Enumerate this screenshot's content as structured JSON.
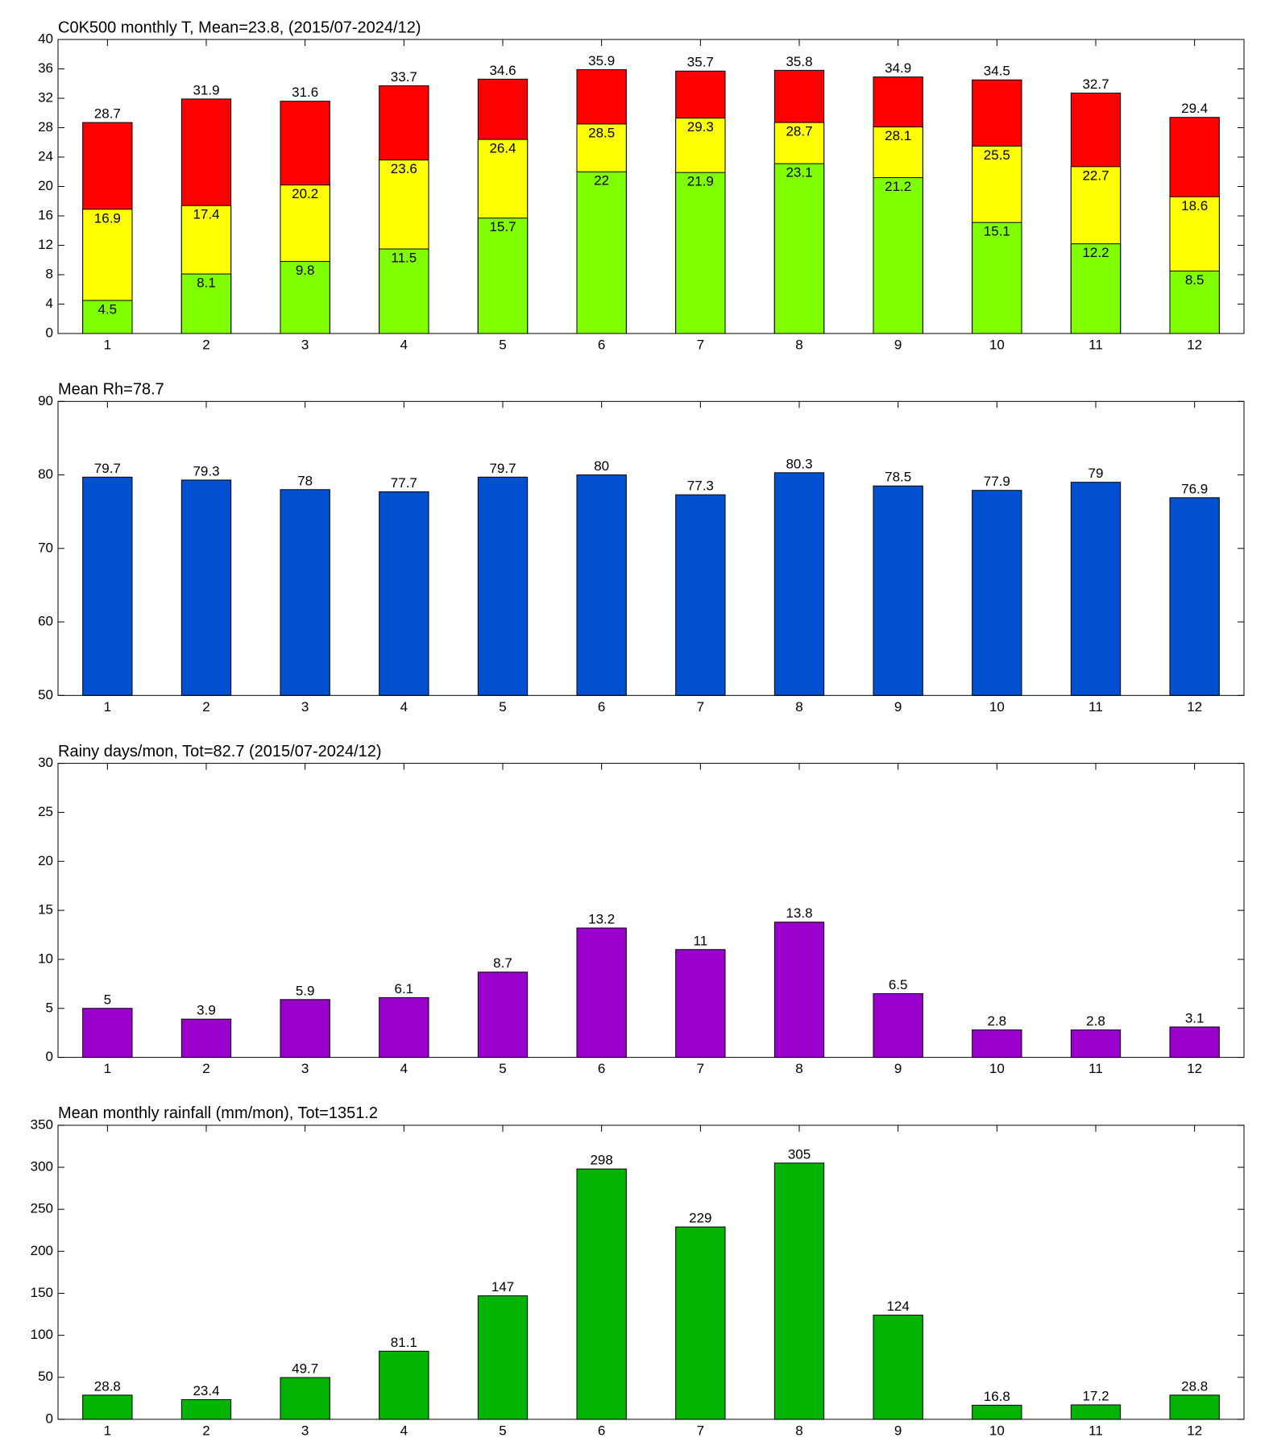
{
  "chart_data": [
    {
      "type": "bar",
      "title": "C0K500 monthly T, Mean=23.8, (2015/07-2024/12)",
      "categories": [
        "1",
        "2",
        "3",
        "4",
        "5",
        "6",
        "7",
        "8",
        "9",
        "10",
        "11",
        "12"
      ],
      "series": [
        {
          "color": "#ff0000",
          "values": [
            28.7,
            31.9,
            31.6,
            33.7,
            34.6,
            35.9,
            35.7,
            35.8,
            34.9,
            34.5,
            32.7,
            29.4
          ]
        },
        {
          "color": "#ffff00",
          "values": [
            16.9,
            17.4,
            20.2,
            23.6,
            26.4,
            28.5,
            29.3,
            28.7,
            28.1,
            25.5,
            22.7,
            18.6
          ]
        },
        {
          "color": "#80ff00",
          "values": [
            4.5,
            8.1,
            9.8,
            11.5,
            15.7,
            22,
            21.9,
            23.1,
            21.2,
            15.1,
            12.2,
            8.5
          ]
        }
      ],
      "ylim": [
        0,
        40
      ],
      "yticks": [
        0,
        4,
        8,
        12,
        16,
        20,
        24,
        28,
        32,
        36,
        40
      ]
    },
    {
      "type": "bar",
      "title": "Mean Rh=78.7",
      "categories": [
        "1",
        "2",
        "3",
        "4",
        "5",
        "6",
        "7",
        "8",
        "9",
        "10",
        "11",
        "12"
      ],
      "values": [
        79.7,
        79.3,
        78,
        77.7,
        79.7,
        80,
        77.3,
        80.3,
        78.5,
        77.9,
        79,
        76.9
      ],
      "color": "#0050d0",
      "ylim": [
        50,
        90
      ],
      "yticks": [
        50,
        60,
        70,
        80,
        90
      ]
    },
    {
      "type": "bar",
      "title": "Rainy days/mon, Tot=82.7 (2015/07-2024/12)",
      "categories": [
        "1",
        "2",
        "3",
        "4",
        "5",
        "6",
        "7",
        "8",
        "9",
        "10",
        "11",
        "12"
      ],
      "values": [
        5,
        3.9,
        5.9,
        6.1,
        8.7,
        13.2,
        11,
        13.8,
        6.5,
        2.8,
        2.8,
        3.1
      ],
      "color": "#9900cc",
      "ylim": [
        0,
        30
      ],
      "yticks": [
        0,
        5,
        10,
        15,
        20,
        25,
        30
      ]
    },
    {
      "type": "bar",
      "title": "Mean monthly rainfall (mm/mon), Tot=1351.2",
      "categories": [
        "1",
        "2",
        "3",
        "4",
        "5",
        "6",
        "7",
        "8",
        "9",
        "10",
        "11",
        "12"
      ],
      "values": [
        28.8,
        23.4,
        49.7,
        81.1,
        147,
        298,
        229,
        305,
        124,
        16.8,
        17.2,
        28.8
      ],
      "color": "#00b400",
      "ylim": [
        0,
        350
      ],
      "yticks": [
        0,
        50,
        100,
        150,
        200,
        250,
        300,
        350
      ]
    }
  ]
}
